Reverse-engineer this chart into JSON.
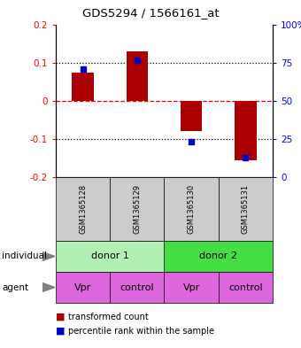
{
  "title": "GDS5294 / 1566161_at",
  "samples": [
    "GSM1365128",
    "GSM1365129",
    "GSM1365130",
    "GSM1365131"
  ],
  "bar_values": [
    0.075,
    0.13,
    -0.08,
    -0.155
  ],
  "percentile_values": [
    0.083,
    0.108,
    -0.108,
    -0.148
  ],
  "bar_color": "#aa0000",
  "dot_color": "#0000cc",
  "ylim": [
    -0.2,
    0.2
  ],
  "yticks_left": [
    -0.2,
    -0.1,
    0.0,
    0.1,
    0.2
  ],
  "ytick_labels_left": [
    "-0.2",
    "-0.1",
    "0",
    "0.1",
    "0.2"
  ],
  "right_ticks_data": [
    -0.2,
    -0.1,
    0.0,
    0.1,
    0.2
  ],
  "ytick_labels_right": [
    "0",
    "25",
    "50",
    "75",
    "100%"
  ],
  "individual_donor1_color": "#b0f0b0",
  "individual_donor2_color": "#44dd44",
  "agent_color": "#dd66dd",
  "sample_box_color": "#cccccc",
  "legend_red_label": "transformed count",
  "legend_blue_label": "percentile rank within the sample",
  "bar_width": 0.4
}
